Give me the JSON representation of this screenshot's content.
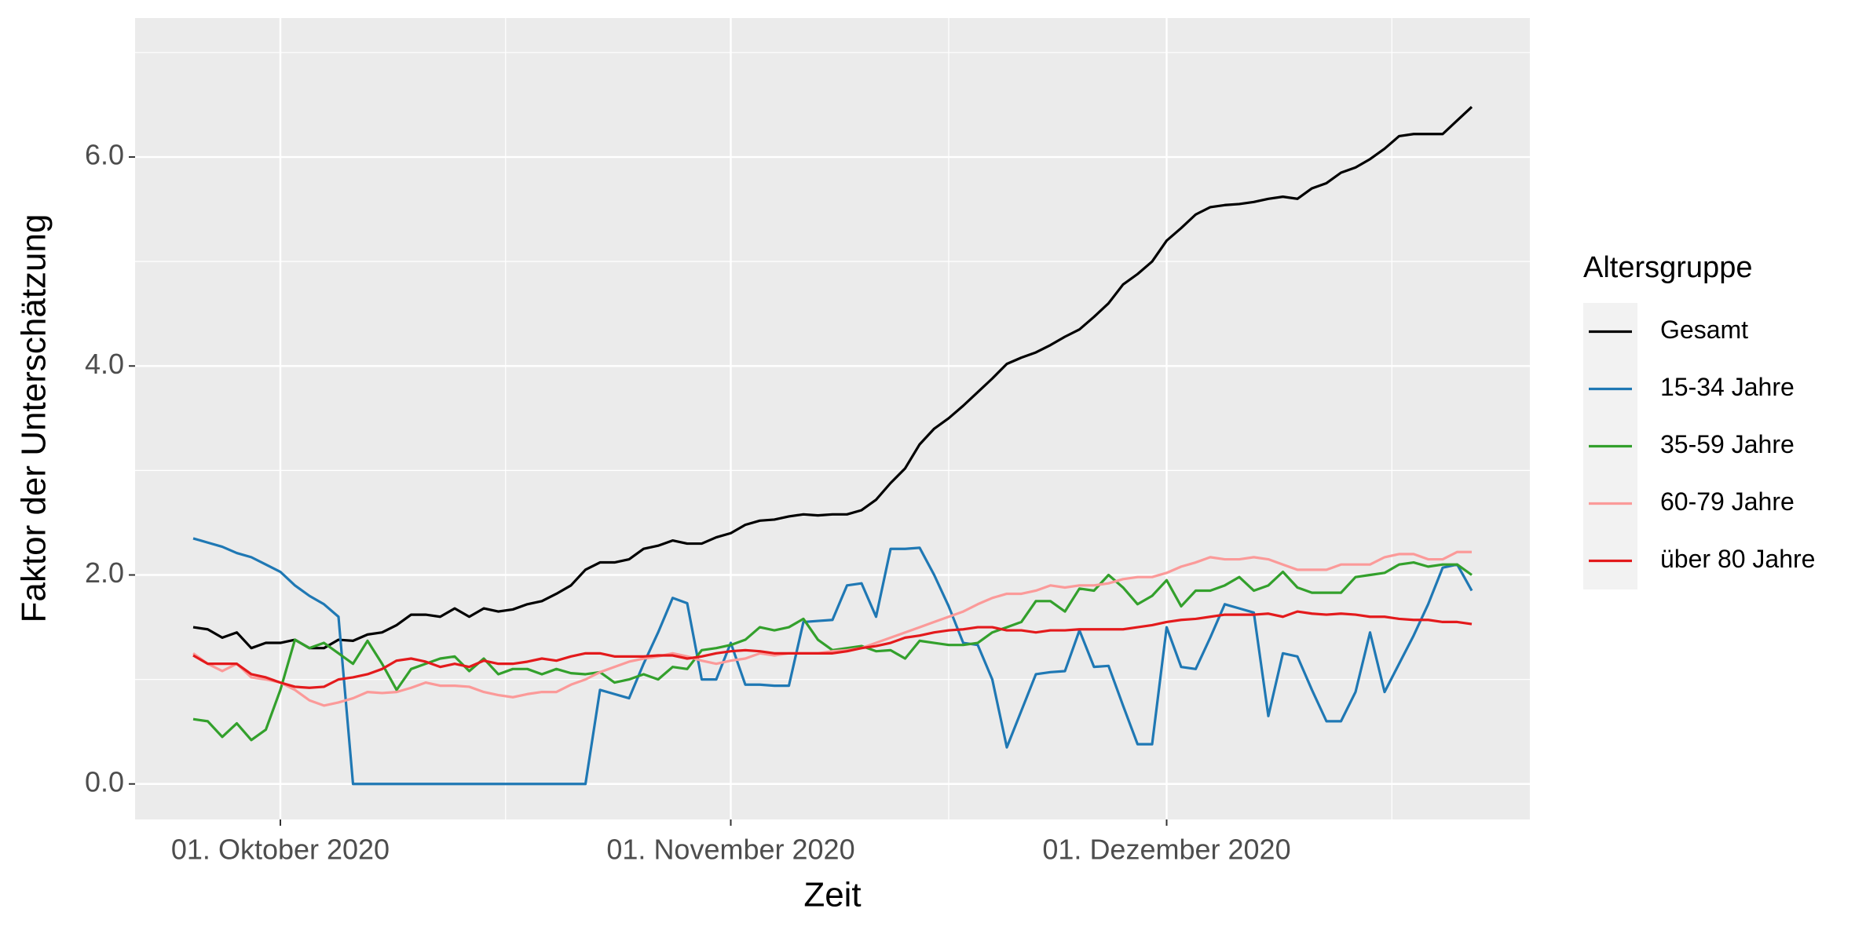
{
  "chart_data": {
    "type": "line",
    "x_label": "Zeit",
    "y_label": "Faktor der Unterschätzung",
    "legend_title": "Altersgruppe",
    "legend": "right",
    "grid": true,
    "xlim": [
      "2020-09-21",
      "2020-12-26"
    ],
    "xticks": [
      {
        "value": "2020-10-01",
        "label": "01. Oktober 2020"
      },
      {
        "value": "2020-11-01",
        "label": "01. November 2020"
      },
      {
        "value": "2020-12-01",
        "label": "01. Dezember 2020"
      }
    ],
    "ylim": [
      -0.34,
      7.33
    ],
    "yticks": [
      {
        "value": 0,
        "label": "0.0"
      },
      {
        "value": 2,
        "label": "2.0"
      },
      {
        "value": 4,
        "label": "4.0"
      },
      {
        "value": 6,
        "label": "6.0"
      }
    ],
    "x": [
      "2020-09-25",
      "2020-09-26",
      "2020-09-27",
      "2020-09-28",
      "2020-09-29",
      "2020-09-30",
      "2020-10-01",
      "2020-10-02",
      "2020-10-03",
      "2020-10-04",
      "2020-10-05",
      "2020-10-06",
      "2020-10-07",
      "2020-10-08",
      "2020-10-09",
      "2020-10-10",
      "2020-10-11",
      "2020-10-12",
      "2020-10-13",
      "2020-10-14",
      "2020-10-15",
      "2020-10-16",
      "2020-10-17",
      "2020-10-18",
      "2020-10-19",
      "2020-10-20",
      "2020-10-21",
      "2020-10-22",
      "2020-10-23",
      "2020-10-24",
      "2020-10-25",
      "2020-10-26",
      "2020-10-27",
      "2020-10-28",
      "2020-10-29",
      "2020-10-30",
      "2020-10-31",
      "2020-11-01",
      "2020-11-02",
      "2020-11-03",
      "2020-11-04",
      "2020-11-05",
      "2020-11-06",
      "2020-11-07",
      "2020-11-08",
      "2020-11-09",
      "2020-11-10",
      "2020-11-11",
      "2020-11-12",
      "2020-11-13",
      "2020-11-14",
      "2020-11-15",
      "2020-11-16",
      "2020-11-17",
      "2020-11-18",
      "2020-11-19",
      "2020-11-20",
      "2020-11-21",
      "2020-11-22",
      "2020-11-23",
      "2020-11-24",
      "2020-11-25",
      "2020-11-26",
      "2020-11-27",
      "2020-11-28",
      "2020-11-29",
      "2020-11-30",
      "2020-12-01",
      "2020-12-02",
      "2020-12-03",
      "2020-12-04",
      "2020-12-05",
      "2020-12-06",
      "2020-12-07",
      "2020-12-08",
      "2020-12-09",
      "2020-12-10",
      "2020-12-11",
      "2020-12-12",
      "2020-12-13",
      "2020-12-14",
      "2020-12-15",
      "2020-12-16",
      "2020-12-17",
      "2020-12-18",
      "2020-12-19",
      "2020-12-20",
      "2020-12-21",
      "2020-12-22"
    ],
    "series": [
      {
        "name": "Gesamt",
        "color": "#000000",
        "values": [
          1.5,
          1.48,
          1.4,
          1.45,
          1.3,
          1.35,
          1.35,
          1.38,
          1.3,
          1.3,
          1.38,
          1.37,
          1.43,
          1.45,
          1.52,
          1.62,
          1.62,
          1.6,
          1.68,
          1.6,
          1.68,
          1.65,
          1.67,
          1.72,
          1.75,
          1.82,
          1.9,
          2.05,
          2.12,
          2.12,
          2.15,
          2.25,
          2.28,
          2.33,
          2.3,
          2.3,
          2.36,
          2.4,
          2.48,
          2.52,
          2.53,
          2.56,
          2.58,
          2.57,
          2.58,
          2.58,
          2.62,
          2.72,
          2.88,
          3.02,
          3.25,
          3.4,
          3.5,
          3.62,
          3.75,
          3.88,
          4.02,
          4.08,
          4.13,
          4.2,
          4.28,
          4.35,
          4.47,
          4.6,
          4.78,
          4.88,
          5.0,
          5.2,
          5.32,
          5.45,
          5.52,
          5.54,
          5.55,
          5.57,
          5.6,
          5.62,
          5.6,
          5.7,
          5.75,
          5.85,
          5.9,
          5.98,
          6.08,
          6.2,
          6.22,
          6.22,
          6.22,
          6.35,
          6.48
        ]
      },
      {
        "name": "15-34 Jahre",
        "color": "#1f78b4",
        "values": [
          2.35,
          2.31,
          2.27,
          2.21,
          2.17,
          2.1,
          2.03,
          1.9,
          1.8,
          1.72,
          1.6,
          0,
          0,
          0,
          0,
          0,
          0,
          0,
          0,
          0,
          0,
          0,
          0,
          0,
          0,
          0,
          0,
          0,
          0.9,
          0.86,
          0.82,
          1.15,
          1.45,
          1.78,
          1.73,
          1.0,
          1.0,
          1.35,
          0.95,
          0.95,
          0.94,
          0.94,
          1.55,
          1.56,
          1.57,
          1.9,
          1.92,
          1.6,
          2.25,
          2.25,
          2.26,
          2.0,
          1.7,
          1.35,
          1.33,
          1.0,
          0.35,
          0.7,
          1.05,
          1.07,
          1.08,
          1.47,
          1.12,
          1.13,
          0.75,
          0.38,
          0.38,
          1.5,
          1.12,
          1.1,
          1.4,
          1.72,
          1.68,
          1.64,
          0.65,
          1.25,
          1.22,
          0.9,
          0.6,
          0.6,
          0.88,
          1.45,
          0.88,
          1.15,
          1.42,
          1.72,
          2.07,
          2.1,
          1.85
        ]
      },
      {
        "name": "35-59 Jahre",
        "color": "#33a02c",
        "values": [
          0.62,
          0.6,
          0.45,
          0.58,
          0.42,
          0.52,
          0.9,
          1.38,
          1.3,
          1.35,
          1.25,
          1.15,
          1.37,
          1.15,
          0.9,
          1.1,
          1.15,
          1.2,
          1.22,
          1.08,
          1.2,
          1.05,
          1.1,
          1.1,
          1.05,
          1.1,
          1.06,
          1.05,
          1.07,
          0.97,
          1.0,
          1.05,
          1.0,
          1.12,
          1.1,
          1.28,
          1.3,
          1.33,
          1.38,
          1.5,
          1.47,
          1.5,
          1.58,
          1.38,
          1.28,
          1.3,
          1.32,
          1.27,
          1.28,
          1.2,
          1.37,
          1.35,
          1.33,
          1.33,
          1.35,
          1.45,
          1.5,
          1.55,
          1.75,
          1.75,
          1.65,
          1.87,
          1.85,
          2.0,
          1.88,
          1.72,
          1.8,
          1.95,
          1.7,
          1.85,
          1.85,
          1.9,
          1.98,
          1.85,
          1.9,
          2.03,
          1.88,
          1.83,
          1.83,
          1.83,
          1.98,
          2.0,
          2.02,
          2.1,
          2.12,
          2.08,
          2.1,
          2.1,
          2.0
        ]
      },
      {
        "name": "60-79 Jahre",
        "color": "#fb9a99",
        "values": [
          1.25,
          1.15,
          1.08,
          1.15,
          1.02,
          1.0,
          0.97,
          0.9,
          0.8,
          0.75,
          0.78,
          0.82,
          0.88,
          0.87,
          0.88,
          0.92,
          0.97,
          0.94,
          0.94,
          0.93,
          0.88,
          0.85,
          0.83,
          0.86,
          0.88,
          0.88,
          0.95,
          1.0,
          1.07,
          1.12,
          1.17,
          1.2,
          1.22,
          1.25,
          1.22,
          1.18,
          1.15,
          1.18,
          1.2,
          1.25,
          1.23,
          1.25,
          1.25,
          1.25,
          1.27,
          1.28,
          1.3,
          1.35,
          1.4,
          1.45,
          1.5,
          1.55,
          1.6,
          1.65,
          1.72,
          1.78,
          1.82,
          1.82,
          1.85,
          1.9,
          1.88,
          1.9,
          1.9,
          1.92,
          1.96,
          1.98,
          1.98,
          2.02,
          2.08,
          2.12,
          2.17,
          2.15,
          2.15,
          2.17,
          2.15,
          2.1,
          2.05,
          2.05,
          2.05,
          2.1,
          2.1,
          2.1,
          2.17,
          2.2,
          2.2,
          2.15,
          2.15,
          2.22,
          2.22
        ]
      },
      {
        "name": "über 80 Jahre",
        "color": "#e31a1c",
        "values": [
          1.23,
          1.15,
          1.15,
          1.15,
          1.05,
          1.02,
          0.97,
          0.93,
          0.92,
          0.93,
          1.0,
          1.02,
          1.05,
          1.1,
          1.18,
          1.2,
          1.17,
          1.12,
          1.15,
          1.12,
          1.18,
          1.15,
          1.15,
          1.17,
          1.2,
          1.18,
          1.22,
          1.25,
          1.25,
          1.22,
          1.22,
          1.22,
          1.23,
          1.23,
          1.2,
          1.22,
          1.25,
          1.27,
          1.28,
          1.27,
          1.25,
          1.25,
          1.25,
          1.25,
          1.25,
          1.27,
          1.3,
          1.32,
          1.35,
          1.4,
          1.42,
          1.45,
          1.47,
          1.48,
          1.5,
          1.5,
          1.47,
          1.47,
          1.45,
          1.47,
          1.47,
          1.48,
          1.48,
          1.48,
          1.48,
          1.5,
          1.52,
          1.55,
          1.57,
          1.58,
          1.6,
          1.62,
          1.62,
          1.62,
          1.63,
          1.6,
          1.65,
          1.63,
          1.62,
          1.63,
          1.62,
          1.6,
          1.6,
          1.58,
          1.57,
          1.57,
          1.55,
          1.55,
          1.53
        ]
      }
    ]
  }
}
